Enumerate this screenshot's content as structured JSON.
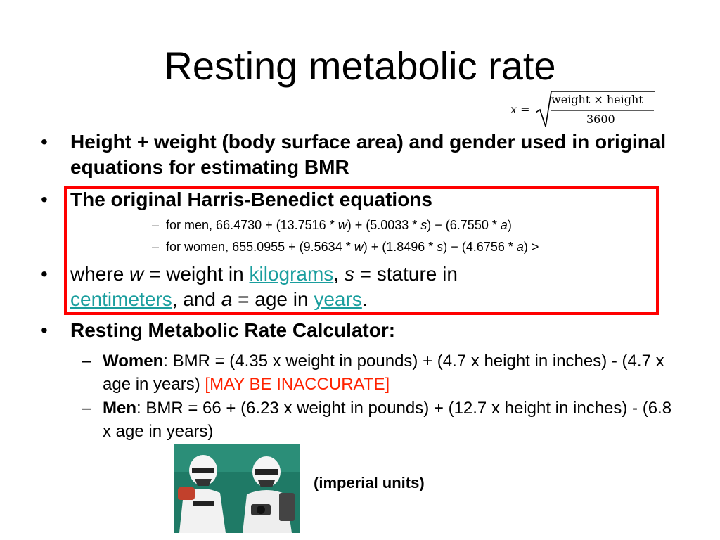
{
  "title": "Resting metabolic rate",
  "formula": {
    "lhs": "x =",
    "numerator": "weight × height",
    "denominator": "3600"
  },
  "bullets": {
    "b1": "Height + weight (body surface area) and gender used in original equations for estimating BMR",
    "b2": "The original Harris-Benedict equations",
    "b2_men": {
      "prefix": "for men, 66.4730 + (13.7516 * ",
      "w": "w",
      "mid1": ") + (5.0033 * ",
      "s": "s",
      "mid2": ") − (6.7550 * ",
      "a": "a",
      "end": ")"
    },
    "b2_women": {
      "prefix": "for women, 655.0955 + (9.5634 * ",
      "w": "w",
      "mid1": ") + (1.8496 * ",
      "s": "s",
      "mid2": ") − (4.6756 * ",
      "a": "a",
      "end": ") >"
    },
    "b3": {
      "t1": "where ",
      "w": "w",
      "t2": " = weight in ",
      "kg": "kilograms",
      "t3": ", ",
      "s": "s",
      "t4": " = stature in ",
      "cm": "centimeters",
      "t5": ", and ",
      "a": "a",
      "t6": " = age in ",
      "years": "years",
      "t7": "."
    },
    "b4": "Resting Metabolic Rate Calculator:",
    "women": {
      "label": "Women",
      "text": ": BMR = (4.35 x weight in pounds) + (4.7 x height in inches) - (4.7 x age in years) ",
      "warning": "[MAY BE INACCURATE]"
    },
    "men": {
      "label": "Men",
      "text": ": BMR = 66 + (6.23 x weight in pounds) + (12.7 x height in inches) - (6.8 x age in years)"
    }
  },
  "bullet_symbol": "•",
  "dash_symbol": "–",
  "caption": "(imperial units)"
}
